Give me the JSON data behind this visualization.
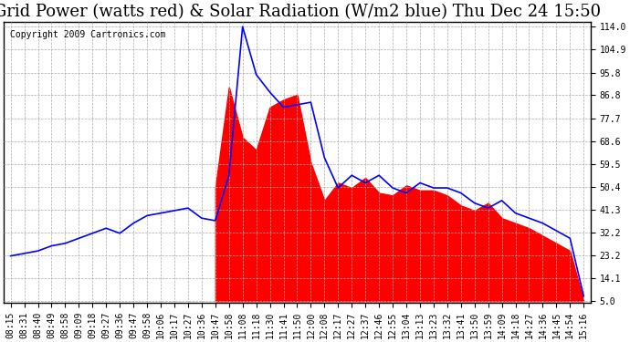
{
  "title": "Grid Power (watts red) & Solar Radiation (W/m2 blue) Thu Dec 24 15:50",
  "copyright": "Copyright 2009 Cartronics.com",
  "y_ticks": [
    5.0,
    14.1,
    23.2,
    32.2,
    41.3,
    50.4,
    59.5,
    68.6,
    77.7,
    86.8,
    95.8,
    104.9,
    114.0
  ],
  "x_labels": [
    "08:15",
    "08:31",
    "08:40",
    "08:49",
    "08:58",
    "09:09",
    "09:18",
    "09:27",
    "09:36",
    "09:47",
    "09:58",
    "10:06",
    "10:17",
    "10:27",
    "10:36",
    "10:47",
    "10:58",
    "11:08",
    "11:18",
    "11:30",
    "11:41",
    "11:50",
    "12:00",
    "12:08",
    "12:17",
    "12:27",
    "12:37",
    "12:46",
    "12:55",
    "13:04",
    "13:13",
    "13:23",
    "13:32",
    "13:41",
    "13:50",
    "13:59",
    "14:09",
    "14:18",
    "14:27",
    "14:36",
    "14:45",
    "14:54",
    "15:16"
  ],
  "solar": [
    23,
    24,
    25,
    27,
    28,
    30,
    32,
    34,
    32,
    36,
    39,
    40,
    41,
    42,
    38,
    37,
    55,
    114,
    95,
    88,
    82,
    83,
    84,
    62,
    50,
    55,
    52,
    55,
    50,
    48,
    52,
    50,
    50,
    48,
    44,
    42,
    45,
    40,
    38,
    36,
    33,
    30,
    7
  ],
  "grid": [
    0,
    0,
    0,
    0,
    0,
    0,
    0,
    0,
    0,
    0,
    0,
    0,
    0,
    0,
    0,
    50,
    90,
    70,
    65,
    82,
    85,
    87,
    60,
    45,
    52,
    50,
    54,
    48,
    47,
    51,
    49,
    49,
    47,
    43,
    41,
    44,
    38,
    36,
    34,
    31,
    28,
    25,
    5
  ],
  "background_color": "#ffffff",
  "grid_color": "#aaaaaa",
  "red_color": "#ff0000",
  "blue_color": "#0000ff",
  "title_fontsize": 13,
  "copyright_fontsize": 7,
  "tick_fontsize": 7,
  "y_min": 5.0,
  "y_max": 114.0
}
